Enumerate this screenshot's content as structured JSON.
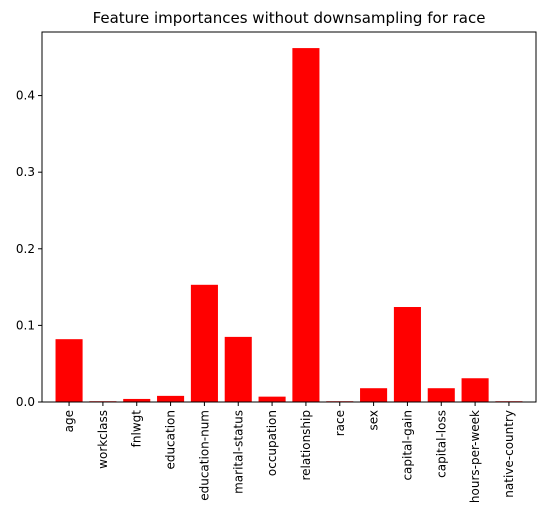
{
  "chart_data": {
    "type": "bar",
    "title": "Feature importances without downsampling for race",
    "xlabel": "",
    "ylabel": "",
    "categories": [
      "age",
      "workclass",
      "fnlwgt",
      "education",
      "education-num",
      "marital-status",
      "occupation",
      "relationship",
      "race",
      "sex",
      "capital-gain",
      "capital-loss",
      "hours-per-week",
      "native-country"
    ],
    "values": [
      0.082,
      0.001,
      0.004,
      0.008,
      0.153,
      0.085,
      0.007,
      0.462,
      0.001,
      0.018,
      0.124,
      0.018,
      0.031,
      0.001
    ],
    "ylim": [
      0,
      0.483
    ],
    "yticks": [
      0.0,
      0.1,
      0.2,
      0.3,
      0.4
    ],
    "ytick_labels": [
      "0.0",
      "0.1",
      "0.2",
      "0.3",
      "0.4"
    ],
    "bar_color": "#ff0000",
    "grid": false,
    "legend": "none"
  }
}
